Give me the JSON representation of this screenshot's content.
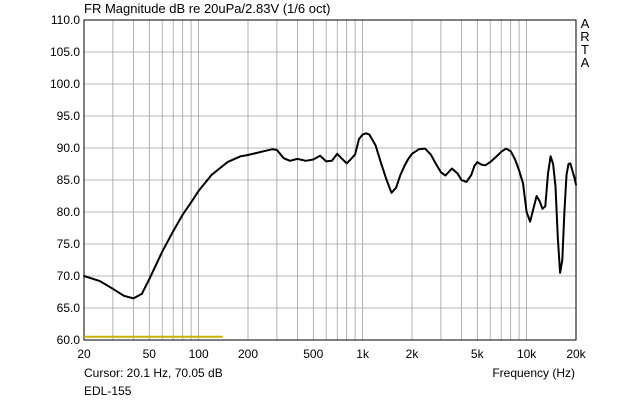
{
  "chart_data": {
    "type": "line",
    "title": "FR Magnitude dB re 20uPa/2.83V (1/6 oct)",
    "xlabel": "Frequency (Hz)",
    "ylabel": "",
    "x_scale": "log",
    "xlim": [
      20,
      20000
    ],
    "ylim": [
      60,
      110
    ],
    "grid": true,
    "y_ticks": [
      "60.0",
      "65.0",
      "70.0",
      "75.0",
      "80.0",
      "85.0",
      "90.0",
      "95.0",
      "100.0",
      "105.0",
      "110.0"
    ],
    "y_tick_values": [
      60,
      65,
      70,
      75,
      80,
      85,
      90,
      95,
      100,
      105,
      110
    ],
    "x_ticks": [
      "20",
      "50",
      "100",
      "200",
      "500",
      "1k",
      "2k",
      "5k",
      "10k",
      "20k"
    ],
    "x_tick_values": [
      20,
      50,
      100,
      200,
      500,
      1000,
      2000,
      5000,
      10000,
      20000
    ],
    "series": [
      {
        "color": "#000000",
        "x": [
          20,
          25,
          30,
          35,
          40,
          45,
          50,
          60,
          70,
          80,
          90,
          100,
          120,
          150,
          180,
          200,
          250,
          280,
          300,
          330,
          360,
          400,
          450,
          500,
          550,
          600,
          650,
          700,
          750,
          800,
          850,
          900,
          950,
          1000,
          1050,
          1100,
          1200,
          1300,
          1400,
          1500,
          1600,
          1700,
          1800,
          1900,
          2000,
          2200,
          2400,
          2600,
          2800,
          3000,
          3200,
          3500,
          3800,
          4000,
          4300,
          4600,
          4800,
          5000,
          5300,
          5600,
          6000,
          6500,
          7000,
          7500,
          8000,
          8500,
          9000,
          9500,
          10000,
          10500,
          11000,
          11500,
          12000,
          12500,
          13000,
          13500,
          14000,
          14500,
          15000,
          15500,
          16000,
          16500,
          17000,
          17500,
          18000,
          18500,
          19000,
          19500,
          20000
        ],
        "y": [
          70.0,
          69.2,
          68.0,
          66.9,
          66.5,
          67.2,
          69.5,
          73.8,
          77.0,
          79.6,
          81.5,
          83.3,
          85.8,
          87.8,
          88.7,
          88.9,
          89.5,
          89.8,
          89.7,
          88.4,
          88.0,
          88.3,
          88.0,
          88.2,
          88.8,
          87.9,
          88.0,
          89.1,
          88.3,
          87.6,
          88.3,
          89.0,
          91.4,
          92.1,
          92.3,
          92.1,
          90.4,
          87.5,
          85.0,
          83.0,
          83.8,
          85.8,
          87.2,
          88.3,
          89.1,
          89.8,
          89.9,
          89.0,
          87.5,
          86.2,
          85.7,
          86.8,
          86.0,
          85.0,
          84.7,
          85.8,
          87.2,
          87.8,
          87.4,
          87.3,
          87.8,
          88.6,
          89.4,
          89.9,
          89.5,
          88.2,
          86.5,
          84.5,
          80.0,
          78.5,
          80.5,
          82.5,
          81.7,
          80.5,
          80.9,
          86.0,
          88.7,
          87.5,
          84.0,
          76.0,
          70.5,
          72.5,
          80.0,
          85.8,
          87.5,
          87.6,
          86.5,
          85.5,
          84.3
        ]
      }
    ],
    "reference_line": {
      "color": "#c8b400",
      "x": [
        20,
        140
      ],
      "y": 60.5
    }
  },
  "logo_letters": [
    "A",
    "R",
    "T",
    "A"
  ],
  "cursor_readout": "Cursor: 20.1 Hz, 70.05 dB",
  "device_label": "EDL-155"
}
